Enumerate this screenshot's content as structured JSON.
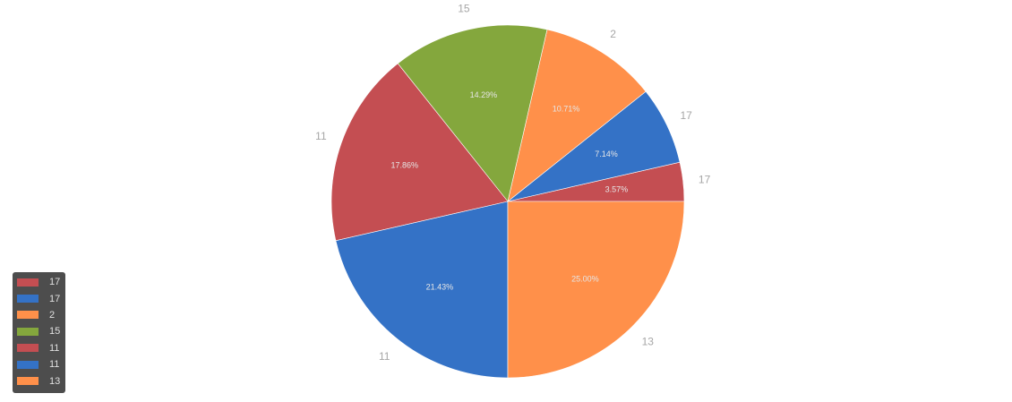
{
  "chart_data": {
    "type": "pie",
    "slices": [
      {
        "label": "17",
        "percent_label": "3.57%",
        "value": 3.57,
        "color": "#c44e52"
      },
      {
        "label": "17",
        "percent_label": "7.14%",
        "value": 7.14,
        "color": "#3472c6"
      },
      {
        "label": "2",
        "percent_label": "10.71%",
        "value": 10.71,
        "color": "#ff904a"
      },
      {
        "label": "15",
        "percent_label": "14.29%",
        "value": 14.29,
        "color": "#84a73d"
      },
      {
        "label": "11",
        "percent_label": "17.86%",
        "value": 17.86,
        "color": "#c44e52"
      },
      {
        "label": "11",
        "percent_label": "21.43%",
        "value": 21.43,
        "color": "#3472c6"
      },
      {
        "label": "13",
        "percent_label": "25.00%",
        "value": 25.0,
        "color": "#ff904a"
      }
    ],
    "start_angle_deg": 0,
    "direction": "counterclockwise",
    "legend_position": "bottom-left"
  },
  "legend": {
    "items": [
      {
        "label": "17",
        "color": "#c44e52"
      },
      {
        "label": "17",
        "color": "#3472c6"
      },
      {
        "label": "2",
        "color": "#ff904a"
      },
      {
        "label": "15",
        "color": "#84a73d"
      },
      {
        "label": "11",
        "color": "#c44e52"
      },
      {
        "label": "11",
        "color": "#3472c6"
      },
      {
        "label": "13",
        "color": "#ff904a"
      }
    ]
  }
}
